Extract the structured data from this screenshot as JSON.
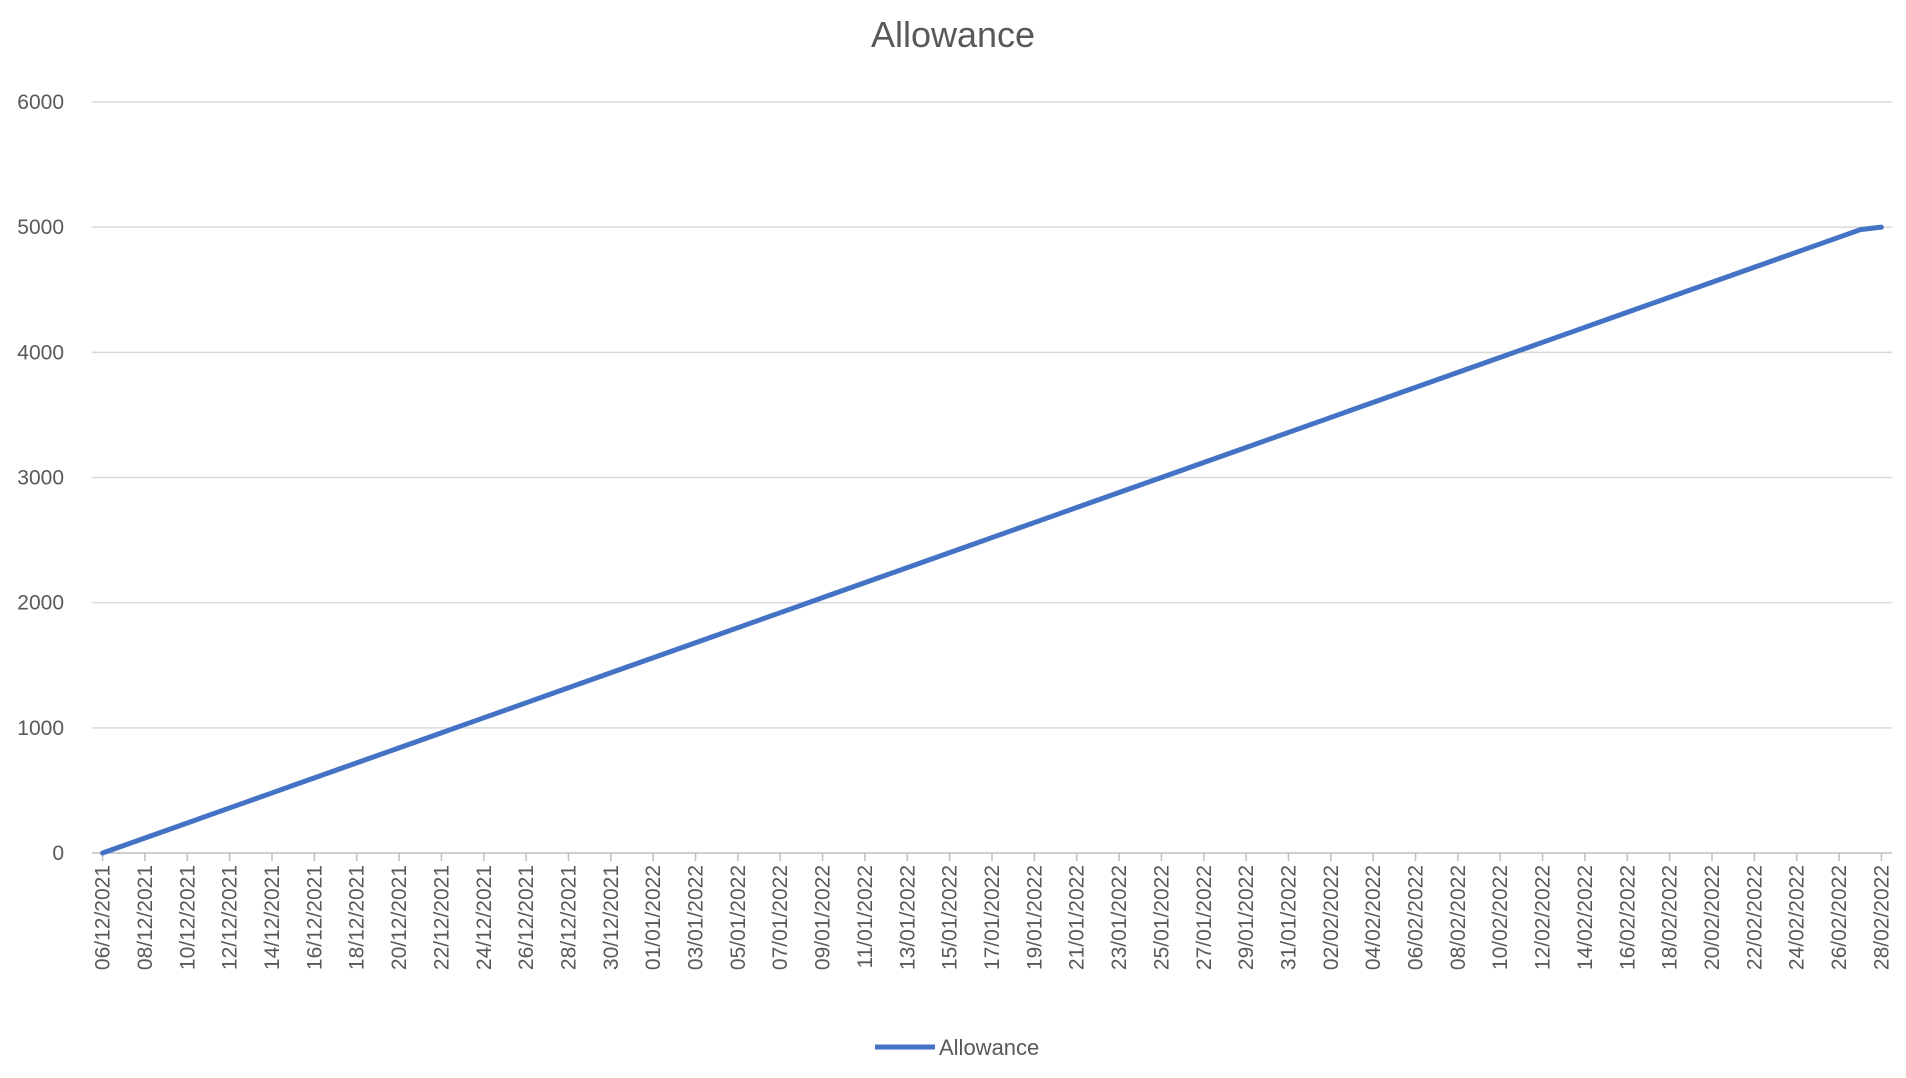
{
  "chart_data": {
    "type": "line",
    "title": "Allowance",
    "xlabel": "",
    "ylabel": "",
    "ylim": [
      0,
      6000
    ],
    "yticks": [
      0,
      1000,
      2000,
      3000,
      4000,
      5000,
      6000
    ],
    "grid": true,
    "legend_position": "bottom",
    "colors": {
      "series": "#4472C4",
      "grid": "#d9d9d9",
      "axis": "#bfbfbf",
      "text": "#595959"
    },
    "x": [
      "06/12/2021",
      "07/12/2021",
      "08/12/2021",
      "09/12/2021",
      "10/12/2021",
      "11/12/2021",
      "12/12/2021",
      "13/12/2021",
      "14/12/2021",
      "15/12/2021",
      "16/12/2021",
      "17/12/2021",
      "18/12/2021",
      "19/12/2021",
      "20/12/2021",
      "21/12/2021",
      "22/12/2021",
      "23/12/2021",
      "24/12/2021",
      "25/12/2021",
      "26/12/2021",
      "27/12/2021",
      "28/12/2021",
      "29/12/2021",
      "30/12/2021",
      "31/12/2021",
      "01/01/2022",
      "02/01/2022",
      "03/01/2022",
      "04/01/2022",
      "05/01/2022",
      "06/01/2022",
      "07/01/2022",
      "08/01/2022",
      "09/01/2022",
      "10/01/2022",
      "11/01/2022",
      "12/01/2022",
      "13/01/2022",
      "14/01/2022",
      "15/01/2022",
      "16/01/2022",
      "17/01/2022",
      "18/01/2022",
      "19/01/2022",
      "20/01/2022",
      "21/01/2022",
      "22/01/2022",
      "23/01/2022",
      "24/01/2022",
      "25/01/2022",
      "26/01/2022",
      "27/01/2022",
      "28/01/2022",
      "29/01/2022",
      "30/01/2022",
      "31/01/2022",
      "01/02/2022",
      "02/02/2022",
      "03/02/2022",
      "04/02/2022",
      "05/02/2022",
      "06/02/2022",
      "07/02/2022",
      "08/02/2022",
      "09/02/2022",
      "10/02/2022",
      "11/02/2022",
      "12/02/2022",
      "13/02/2022",
      "14/02/2022",
      "15/02/2022",
      "16/02/2022",
      "17/02/2022",
      "18/02/2022",
      "19/02/2022",
      "20/02/2022",
      "21/02/2022",
      "22/02/2022",
      "23/02/2022",
      "24/02/2022",
      "25/02/2022",
      "26/02/2022",
      "27/02/2022",
      "28/02/2022"
    ],
    "tick_labels": [
      "06/12/2021",
      "08/12/2021",
      "10/12/2021",
      "12/12/2021",
      "14/12/2021",
      "16/12/2021",
      "18/12/2021",
      "20/12/2021",
      "22/12/2021",
      "24/12/2021",
      "26/12/2021",
      "28/12/2021",
      "30/12/2021",
      "01/01/2022",
      "03/01/2022",
      "05/01/2022",
      "07/01/2022",
      "09/01/2022",
      "11/01/2022",
      "13/01/2022",
      "15/01/2022",
      "17/01/2022",
      "19/01/2022",
      "21/01/2022",
      "23/01/2022",
      "25/01/2022",
      "27/01/2022",
      "29/01/2022",
      "31/01/2022",
      "02/02/2022",
      "04/02/2022",
      "06/02/2022",
      "08/02/2022",
      "10/02/2022",
      "12/02/2022",
      "14/02/2022",
      "16/02/2022",
      "18/02/2022",
      "20/02/2022",
      "22/02/2022",
      "24/02/2022",
      "26/02/2022",
      "28/02/2022"
    ],
    "series": [
      {
        "name": "Allowance",
        "values": [
          0,
          60,
          120,
          180,
          240,
          300,
          360,
          420,
          480,
          540,
          600,
          660,
          720,
          780,
          840,
          900,
          960,
          1020,
          1080,
          1140,
          1200,
          1260,
          1320,
          1380,
          1440,
          1500,
          1560,
          1620,
          1680,
          1740,
          1800,
          1860,
          1920,
          1980,
          2040,
          2100,
          2160,
          2220,
          2280,
          2340,
          2400,
          2460,
          2520,
          2580,
          2640,
          2700,
          2760,
          2820,
          2880,
          2940,
          3000,
          3060,
          3120,
          3180,
          3240,
          3300,
          3360,
          3420,
          3480,
          3540,
          3600,
          3660,
          3720,
          3780,
          3840,
          3900,
          3960,
          4020,
          4080,
          4140,
          4200,
          4260,
          4320,
          4380,
          4440,
          4500,
          4560,
          4620,
          4680,
          4740,
          4800,
          4860,
          4920,
          4980,
          5000
        ]
      }
    ]
  }
}
